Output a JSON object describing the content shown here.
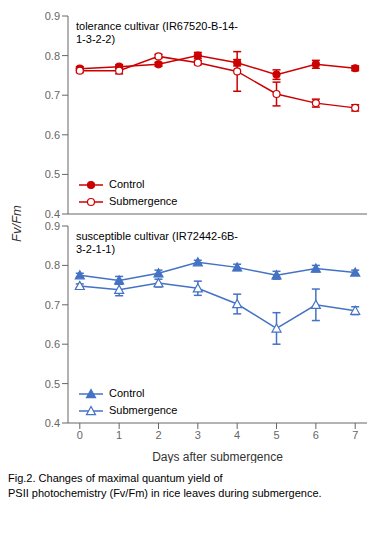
{
  "chart_data": [
    {
      "type": "line",
      "title": "tolerance cultivar (IR67520-B-14-\n1-3-2-2)",
      "y_label": "Fv/Fm",
      "x": [
        0,
        1,
        2,
        3,
        4,
        5,
        6,
        7
      ],
      "xlim": [
        -0.3,
        7.3
      ],
      "xticks": [
        0,
        1,
        2,
        3,
        4,
        5,
        6,
        7
      ],
      "ylim": [
        0.4,
        0.9
      ],
      "yticks": [
        0.4,
        0.5,
        0.6,
        0.7,
        0.8,
        0.9
      ],
      "grid": false,
      "legend": "lower left",
      "tick_labels": "y",
      "series": [
        {
          "name": "Control",
          "color": "#cc0000",
          "marker": "circle",
          "values": [
            0.767,
            0.772,
            0.778,
            0.8,
            0.782,
            0.752,
            0.778,
            0.768
          ],
          "errors": [
            0.005,
            0.005,
            0.005,
            0.008,
            0.008,
            0.012,
            0.01,
            0.006
          ]
        },
        {
          "name": "Submergence",
          "color": "#cc0000",
          "marker": "open_circle",
          "values": [
            0.762,
            0.762,
            0.798,
            0.782,
            0.76,
            0.703,
            0.68,
            0.668
          ],
          "errors": [
            0.005,
            0.008,
            0.005,
            0.005,
            0.05,
            0.03,
            0.01,
            0.008
          ]
        }
      ]
    },
    {
      "type": "line",
      "title": "susceptible cultivar (IR72442-6B-\n3-2-1-1)",
      "x_label": "Days after submergence",
      "x": [
        0,
        1,
        2,
        3,
        4,
        5,
        6,
        7
      ],
      "xlim": [
        -0.3,
        7.3
      ],
      "xticks": [
        0,
        1,
        2,
        3,
        4,
        5,
        6,
        7
      ],
      "ylim": [
        0.4,
        0.9
      ],
      "yticks": [
        0.4,
        0.5,
        0.6,
        0.7,
        0.8,
        0.9
      ],
      "grid": false,
      "legend": "lower left",
      "annotations": [
        "Fig.2. Changes of maximal quantum yield of",
        "PSII photochemistry (Fv/Fm) in rice leaves during submergence."
      ],
      "series": [
        {
          "name": "Control",
          "color": "#4472c4",
          "marker": "triangle",
          "values": [
            0.775,
            0.762,
            0.78,
            0.808,
            0.795,
            0.775,
            0.792,
            0.782
          ],
          "errors": [
            0.005,
            0.01,
            0.008,
            0.005,
            0.008,
            0.01,
            0.008,
            0.006
          ]
        },
        {
          "name": "Submergence",
          "color": "#4472c4",
          "marker": "open_triangle",
          "values": [
            0.748,
            0.738,
            0.755,
            0.742,
            0.702,
            0.64,
            0.7,
            0.685
          ],
          "errors": [
            0.005,
            0.015,
            0.01,
            0.018,
            0.025,
            0.04,
            0.04,
            0.01
          ]
        }
      ]
    }
  ]
}
